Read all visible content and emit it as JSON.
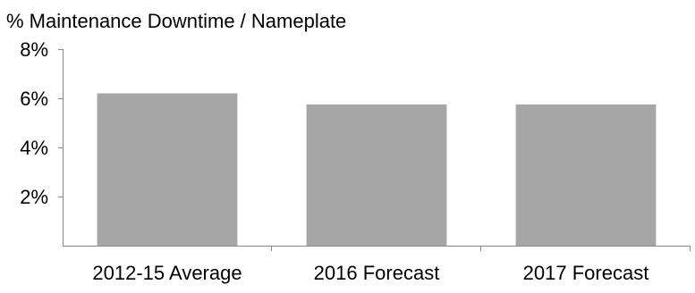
{
  "chart_data": {
    "type": "bar",
    "title": "% Maintenance Downtime / Nameplate",
    "categories": [
      "2012-15 Average",
      "2016 Forecast",
      "2017 Forecast"
    ],
    "values": [
      6.2,
      5.75,
      5.75
    ],
    "ylim": [
      0,
      8
    ],
    "yticks": [
      2,
      4,
      6,
      8
    ],
    "ytick_labels": [
      "2%",
      "4%",
      "6%",
      "8%"
    ],
    "xlabel": "",
    "ylabel": "",
    "grid": false,
    "legend": "none",
    "bar_color": "#a6a6a6",
    "axis_color": "#868686"
  }
}
